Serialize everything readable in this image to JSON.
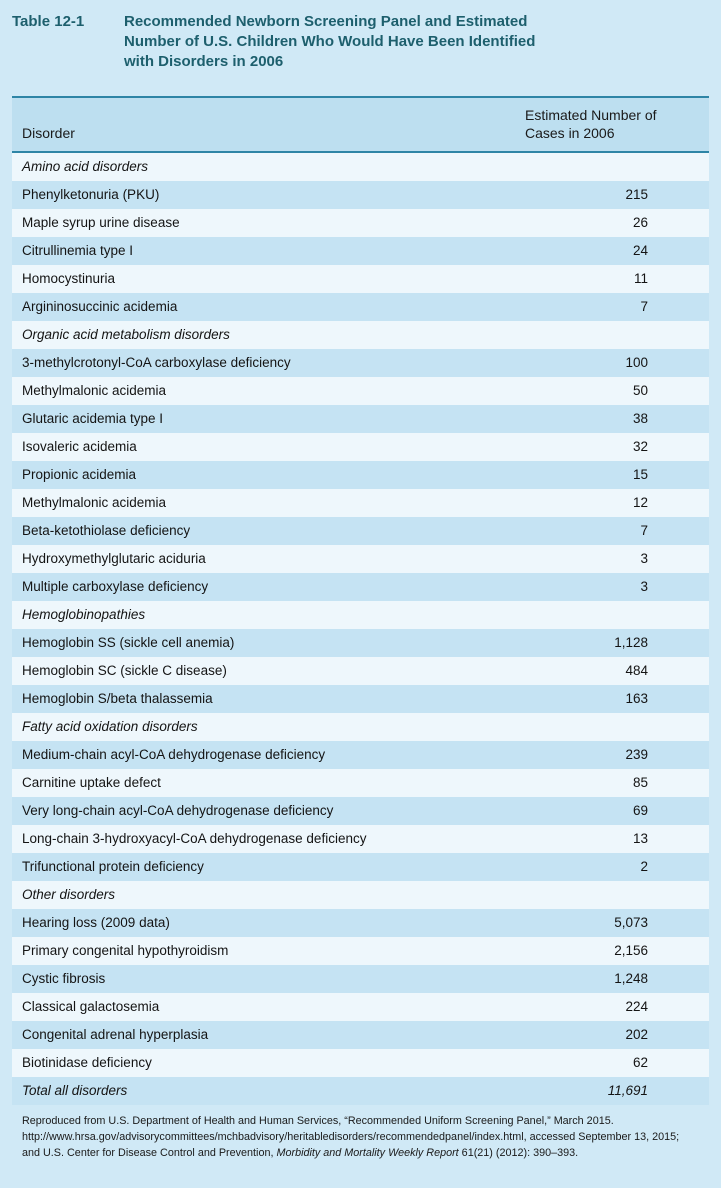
{
  "title": {
    "label": "Table 12-1",
    "lines": [
      "Recommended Newborn Screening Panel and Estimated",
      "Number of U.S. Children Who Would Have Been Identified",
      "with Disorders in 2006"
    ]
  },
  "table": {
    "columns": [
      "Disorder",
      "Estimated Number of Cases in 2006"
    ],
    "rows": [
      {
        "type": "section",
        "label": "Amino acid disorders",
        "value": null
      },
      {
        "type": "data",
        "label": "Phenylketonuria (PKU)",
        "value": "215"
      },
      {
        "type": "data",
        "label": "Maple syrup urine disease",
        "value": "26"
      },
      {
        "type": "data",
        "label": "Citrullinemia type I",
        "value": "24"
      },
      {
        "type": "data",
        "label": "Homocystinuria",
        "value": "11"
      },
      {
        "type": "data",
        "label": "Argininosuccinic acidemia",
        "value": "7"
      },
      {
        "type": "section",
        "label": "Organic acid metabolism disorders",
        "value": null
      },
      {
        "type": "data",
        "label": "3-methylcrotonyl-CoA carboxylase deficiency",
        "value": "100"
      },
      {
        "type": "data",
        "label": "Methylmalonic acidemia",
        "value": "50"
      },
      {
        "type": "data",
        "label": "Glutaric acidemia type I",
        "value": "38"
      },
      {
        "type": "data",
        "label": "Isovaleric acidemia",
        "value": "32"
      },
      {
        "type": "data",
        "label": "Propionic acidemia",
        "value": "15"
      },
      {
        "type": "data",
        "label": "Methylmalonic acidemia",
        "value": "12"
      },
      {
        "type": "data",
        "label": "Beta-ketothiolase deficiency",
        "value": "7"
      },
      {
        "type": "data",
        "label": "Hydroxymethylglutaric aciduria",
        "value": "3"
      },
      {
        "type": "data",
        "label": "Multiple carboxylase deficiency",
        "value": "3"
      },
      {
        "type": "section",
        "label": "Hemoglobinopathies",
        "value": null
      },
      {
        "type": "data",
        "label": "Hemoglobin SS (sickle cell anemia)",
        "value": "1,128"
      },
      {
        "type": "data",
        "label": "Hemoglobin SC (sickle C disease)",
        "value": "484"
      },
      {
        "type": "data",
        "label": "Hemoglobin S/beta thalassemia",
        "value": "163"
      },
      {
        "type": "section",
        "label": "Fatty acid oxidation disorders",
        "value": null
      },
      {
        "type": "data",
        "label": "Medium-chain acyl-CoA dehydrogenase deficiency",
        "value": "239"
      },
      {
        "type": "data",
        "label": "Carnitine uptake defect",
        "value": "85"
      },
      {
        "type": "data",
        "label": "Very long-chain acyl-CoA dehydrogenase deficiency",
        "value": "69"
      },
      {
        "type": "data",
        "label": "Long-chain 3-hydroxyacyl-CoA dehydrogenase deficiency",
        "value": "13"
      },
      {
        "type": "data",
        "label": "Trifunctional protein deficiency",
        "value": "2"
      },
      {
        "type": "section",
        "label": "Other disorders",
        "value": null
      },
      {
        "type": "data",
        "label": "Hearing loss (2009 data)",
        "value": "5,073"
      },
      {
        "type": "data",
        "label": "Primary congenital hypothyroidism",
        "value": "2,156"
      },
      {
        "type": "data",
        "label": "Cystic fibrosis",
        "value": "1,248"
      },
      {
        "type": "data",
        "label": "Classical galactosemia",
        "value": "224"
      },
      {
        "type": "data",
        "label": "Congenital adrenal hyperplasia",
        "value": "202"
      },
      {
        "type": "data",
        "label": "Biotinidase deficiency",
        "value": "62"
      },
      {
        "type": "total",
        "label": "Total all disorders",
        "value": "11,691"
      }
    ]
  },
  "footer": {
    "part1": "Reproduced from U.S. Department of Health and Human Services, “Recommended Uniform Screening Panel,” March 2015. http://www.hrsa.gov/advisorycommittees/mchbadvisory/heritabledisorders/recommendedpanel/index.html, accessed September 13, 2015; and U.S. Center for Disease Control and Prevention, ",
    "italic": "Morbidity and Mortality Weekly Report",
    "part2": " 61(21) (2012): 390–393."
  },
  "colors": {
    "page_background": "#d0e9f6",
    "row_blue": "#c5e3f3",
    "row_light": "#eef7fc",
    "header_background": "#bddff0",
    "rule_teal": "#2e85a6",
    "title_teal": "#1d5f6d"
  }
}
